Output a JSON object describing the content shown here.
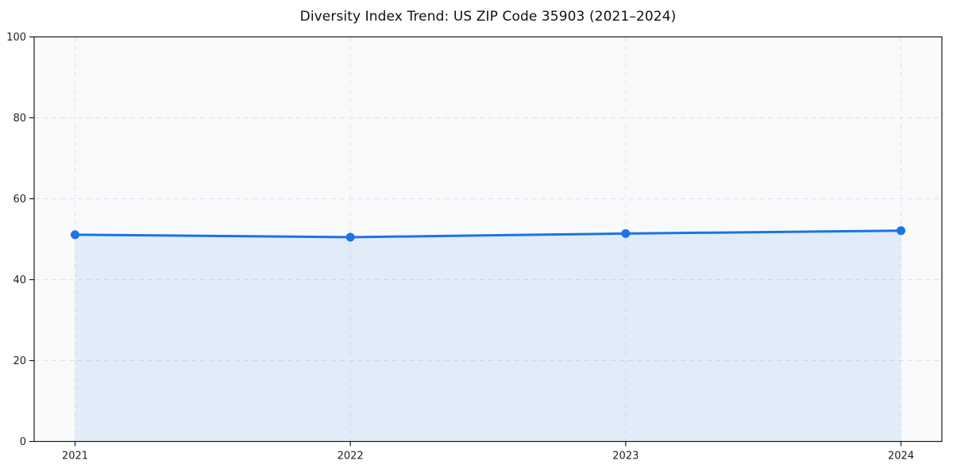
{
  "chart_data": {
    "type": "area",
    "title": "Diversity Index Trend: US ZIP Code 35903 (2021–2024)",
    "categories": [
      "2021",
      "2022",
      "2023",
      "2024"
    ],
    "values": [
      51.1,
      50.5,
      51.4,
      52.1
    ],
    "xlabel": "",
    "ylabel": "",
    "ylim": [
      0,
      100
    ],
    "yticks": [
      0,
      20,
      40,
      60,
      80,
      100
    ],
    "grid": "dashed, horizontal at yticks and vertical at each year",
    "legend": "none",
    "line_color": "#1a73e8",
    "marker_color": "#1a73e8",
    "fill_color": "rgba(26,115,232,0.10)",
    "plot_background": "#f9fafb",
    "grid_color": "#e0e2e6",
    "spine_color": "#1a1a1a",
    "tick_label_color": "#1f1f1f"
  }
}
